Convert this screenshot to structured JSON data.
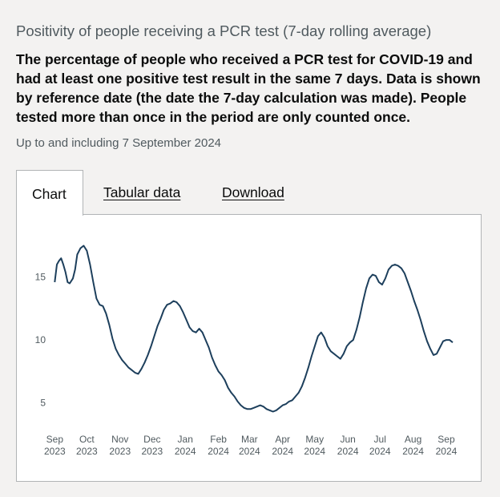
{
  "heading": "Positivity of people receiving a PCR test (7-day rolling average)",
  "description": "The percentage of people who received a PCR test for COVID-19 and had at least one positive test result in the same 7 days. Data is shown by reference date (the date the 7-day calculation was made). People tested more than once in the period are only counted once.",
  "updated": "Up to and including 7 September 2024",
  "tabs": [
    {
      "label": "Chart",
      "active": true
    },
    {
      "label": "Tabular data",
      "active": false
    },
    {
      "label": "Download",
      "active": false
    }
  ],
  "colors": {
    "line": "#1d3f5c",
    "tick_text": "#505a5f",
    "border": "#b1b4b6"
  },
  "chart_data": {
    "type": "line",
    "title": "",
    "xlabel": "",
    "ylabel": "",
    "ylim": [
      3.5,
      19
    ],
    "xlim": [
      "2023-08-31",
      "2024-09-10"
    ],
    "grid": false,
    "yticks": [
      5,
      10,
      15
    ],
    "xticks": [
      {
        "date": "2023-09-01",
        "month": "Sep",
        "year": "2023"
      },
      {
        "date": "2023-10-01",
        "month": "Oct",
        "year": "2023"
      },
      {
        "date": "2023-11-01",
        "month": "Nov",
        "year": "2023"
      },
      {
        "date": "2023-12-01",
        "month": "Dec",
        "year": "2023"
      },
      {
        "date": "2024-01-01",
        "month": "Jan",
        "year": "2024"
      },
      {
        "date": "2024-02-01",
        "month": "Feb",
        "year": "2024"
      },
      {
        "date": "2024-03-01",
        "month": "Mar",
        "year": "2024"
      },
      {
        "date": "2024-04-01",
        "month": "Apr",
        "year": "2024"
      },
      {
        "date": "2024-05-01",
        "month": "May",
        "year": "2024"
      },
      {
        "date": "2024-06-01",
        "month": "Jun",
        "year": "2024"
      },
      {
        "date": "2024-07-01",
        "month": "Jul",
        "year": "2024"
      },
      {
        "date": "2024-08-01",
        "month": "Aug",
        "year": "2024"
      },
      {
        "date": "2024-09-01",
        "month": "Sep",
        "year": "2024"
      }
    ],
    "series": [
      {
        "points": [
          [
            "2023-09-01",
            14.6
          ],
          [
            "2023-09-03",
            16.0
          ],
          [
            "2023-09-05",
            16.3
          ],
          [
            "2023-09-07",
            16.5
          ],
          [
            "2023-09-09",
            16.0
          ],
          [
            "2023-09-11",
            15.4
          ],
          [
            "2023-09-13",
            14.6
          ],
          [
            "2023-09-15",
            14.5
          ],
          [
            "2023-09-18",
            14.9
          ],
          [
            "2023-09-20",
            15.6
          ],
          [
            "2023-09-22",
            16.8
          ],
          [
            "2023-09-25",
            17.3
          ],
          [
            "2023-09-28",
            17.5
          ],
          [
            "2023-10-01",
            17.1
          ],
          [
            "2023-10-04",
            16.0
          ],
          [
            "2023-10-07",
            14.6
          ],
          [
            "2023-10-10",
            13.3
          ],
          [
            "2023-10-13",
            12.8
          ],
          [
            "2023-10-16",
            12.7
          ],
          [
            "2023-10-19",
            12.1
          ],
          [
            "2023-10-22",
            11.2
          ],
          [
            "2023-10-25",
            10.1
          ],
          [
            "2023-10-28",
            9.3
          ],
          [
            "2023-10-31",
            8.8
          ],
          [
            "2023-11-03",
            8.4
          ],
          [
            "2023-11-06",
            8.1
          ],
          [
            "2023-11-09",
            7.8
          ],
          [
            "2023-11-12",
            7.6
          ],
          [
            "2023-11-15",
            7.4
          ],
          [
            "2023-11-18",
            7.3
          ],
          [
            "2023-11-21",
            7.7
          ],
          [
            "2023-11-24",
            8.2
          ],
          [
            "2023-11-27",
            8.8
          ],
          [
            "2023-11-30",
            9.5
          ],
          [
            "2023-12-03",
            10.3
          ],
          [
            "2023-12-06",
            11.1
          ],
          [
            "2023-12-09",
            11.7
          ],
          [
            "2023-12-12",
            12.4
          ],
          [
            "2023-12-15",
            12.8
          ],
          [
            "2023-12-18",
            12.9
          ],
          [
            "2023-12-21",
            13.1
          ],
          [
            "2023-12-24",
            13.0
          ],
          [
            "2023-12-27",
            12.7
          ],
          [
            "2023-12-30",
            12.2
          ],
          [
            "2024-01-02",
            11.6
          ],
          [
            "2024-01-05",
            11.0
          ],
          [
            "2024-01-08",
            10.7
          ],
          [
            "2024-01-11",
            10.6
          ],
          [
            "2024-01-14",
            10.9
          ],
          [
            "2024-01-17",
            10.6
          ],
          [
            "2024-01-20",
            10.0
          ],
          [
            "2024-01-23",
            9.4
          ],
          [
            "2024-01-26",
            8.6
          ],
          [
            "2024-01-29",
            8.0
          ],
          [
            "2024-02-01",
            7.5
          ],
          [
            "2024-02-04",
            7.2
          ],
          [
            "2024-02-07",
            6.8
          ],
          [
            "2024-02-10",
            6.2
          ],
          [
            "2024-02-13",
            5.8
          ],
          [
            "2024-02-16",
            5.5
          ],
          [
            "2024-02-19",
            5.1
          ],
          [
            "2024-02-22",
            4.8
          ],
          [
            "2024-02-25",
            4.6
          ],
          [
            "2024-02-28",
            4.5
          ],
          [
            "2024-03-02",
            4.5
          ],
          [
            "2024-03-05",
            4.6
          ],
          [
            "2024-03-08",
            4.7
          ],
          [
            "2024-03-11",
            4.8
          ],
          [
            "2024-03-14",
            4.7
          ],
          [
            "2024-03-17",
            4.5
          ],
          [
            "2024-03-20",
            4.4
          ],
          [
            "2024-03-23",
            4.3
          ],
          [
            "2024-03-26",
            4.4
          ],
          [
            "2024-03-29",
            4.6
          ],
          [
            "2024-04-01",
            4.8
          ],
          [
            "2024-04-04",
            4.9
          ],
          [
            "2024-04-07",
            5.1
          ],
          [
            "2024-04-10",
            5.2
          ],
          [
            "2024-04-13",
            5.5
          ],
          [
            "2024-04-16",
            5.8
          ],
          [
            "2024-04-19",
            6.3
          ],
          [
            "2024-04-22",
            7.0
          ],
          [
            "2024-04-25",
            7.8
          ],
          [
            "2024-04-28",
            8.7
          ],
          [
            "2024-05-01",
            9.5
          ],
          [
            "2024-05-04",
            10.3
          ],
          [
            "2024-05-07",
            10.6
          ],
          [
            "2024-05-10",
            10.2
          ],
          [
            "2024-05-13",
            9.5
          ],
          [
            "2024-05-16",
            9.1
          ],
          [
            "2024-05-19",
            8.9
          ],
          [
            "2024-05-22",
            8.7
          ],
          [
            "2024-05-25",
            8.5
          ],
          [
            "2024-05-28",
            8.9
          ],
          [
            "2024-05-31",
            9.5
          ],
          [
            "2024-06-03",
            9.8
          ],
          [
            "2024-06-06",
            10.0
          ],
          [
            "2024-06-09",
            10.8
          ],
          [
            "2024-06-12",
            11.8
          ],
          [
            "2024-06-15",
            13.0
          ],
          [
            "2024-06-18",
            14.1
          ],
          [
            "2024-06-21",
            14.9
          ],
          [
            "2024-06-24",
            15.2
          ],
          [
            "2024-06-27",
            15.1
          ],
          [
            "2024-06-30",
            14.6
          ],
          [
            "2024-07-03",
            14.4
          ],
          [
            "2024-07-06",
            14.9
          ],
          [
            "2024-07-09",
            15.6
          ],
          [
            "2024-07-12",
            15.9
          ],
          [
            "2024-07-15",
            16.0
          ],
          [
            "2024-07-18",
            15.9
          ],
          [
            "2024-07-21",
            15.7
          ],
          [
            "2024-07-24",
            15.3
          ],
          [
            "2024-07-27",
            14.6
          ],
          [
            "2024-07-30",
            13.9
          ],
          [
            "2024-08-02",
            13.1
          ],
          [
            "2024-08-05",
            12.4
          ],
          [
            "2024-08-08",
            11.6
          ],
          [
            "2024-08-11",
            10.7
          ],
          [
            "2024-08-14",
            9.9
          ],
          [
            "2024-08-17",
            9.3
          ],
          [
            "2024-08-20",
            8.8
          ],
          [
            "2024-08-23",
            8.9
          ],
          [
            "2024-08-26",
            9.4
          ],
          [
            "2024-08-29",
            9.9
          ],
          [
            "2024-09-01",
            10.0
          ],
          [
            "2024-09-04",
            10.0
          ],
          [
            "2024-09-07",
            9.8
          ]
        ]
      }
    ]
  }
}
